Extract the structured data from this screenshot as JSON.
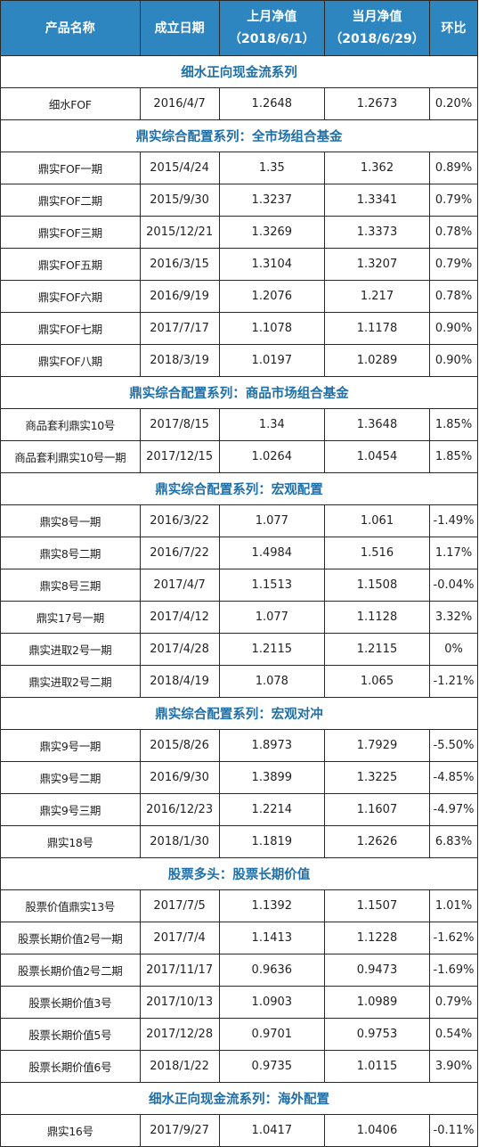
{
  "header": {
    "name": "产品名称",
    "date": "成立日期",
    "prev_nav": "上月净值",
    "prev_date": "（2018/6/1）",
    "curr_nav": "当月净值",
    "curr_date": "（2018/6/29）",
    "change": "环比"
  },
  "sections": [
    {
      "title": "细水正向现金流系列",
      "rows": [
        {
          "name": "细水FOF",
          "date": "2016/4/7",
          "prev": "1.2648",
          "curr": "1.2673",
          "change": "0.20%"
        }
      ]
    },
    {
      "title": "鼎实综合配置系列：全市场组合基金",
      "rows": [
        {
          "name": "鼎实FOF一期",
          "date": "2015/4/24",
          "prev": "1.35",
          "curr": "1.362",
          "change": "0.89%"
        },
        {
          "name": "鼎实FOF二期",
          "date": "2015/9/30",
          "prev": "1.3237",
          "curr": "1.3341",
          "change": "0.79%"
        },
        {
          "name": "鼎实FOF三期",
          "date": "2015/12/21",
          "prev": "1.3269",
          "curr": "1.3373",
          "change": "0.78%"
        },
        {
          "name": "鼎实FOF五期",
          "date": "2016/3/15",
          "prev": "1.3104",
          "curr": "1.3207",
          "change": "0.79%"
        },
        {
          "name": "鼎实FOF六期",
          "date": "2016/9/19",
          "prev": "1.2076",
          "curr": "1.217",
          "change": "0.78%"
        },
        {
          "name": "鼎实FOF七期",
          "date": "2017/7/17",
          "prev": "1.1078",
          "curr": "1.1178",
          "change": "0.90%"
        },
        {
          "name": "鼎实FOF八期",
          "date": "2018/3/19",
          "prev": "1.0197",
          "curr": "1.0289",
          "change": "0.90%"
        }
      ]
    },
    {
      "title": "鼎实综合配置系列：商品市场组合基金",
      "rows": [
        {
          "name": "商品套利鼎实10号",
          "date": "2017/8/15",
          "prev": "1.34",
          "curr": "1.3648",
          "change": "1.85%"
        },
        {
          "name": "商品套利鼎实10号一期",
          "date": "2017/12/15",
          "prev": "1.0264",
          "curr": "1.0454",
          "change": "1.85%"
        }
      ]
    },
    {
      "title": "鼎实综合配置系列：宏观配置",
      "rows": [
        {
          "name": "鼎实8号一期",
          "date": "2016/3/22",
          "prev": "1.077",
          "curr": "1.061",
          "change": "-1.49%"
        },
        {
          "name": "鼎实8号二期",
          "date": "2016/7/22",
          "prev": "1.4984",
          "curr": "1.516",
          "change": "1.17%"
        },
        {
          "name": "鼎实8号三期",
          "date": "2017/4/7",
          "prev": "1.1513",
          "curr": "1.1508",
          "change": "-0.04%"
        },
        {
          "name": "鼎实17号一期",
          "date": "2017/4/12",
          "prev": "1.077",
          "curr": "1.1128",
          "change": "3.32%"
        },
        {
          "name": "鼎实进取2号一期",
          "date": "2017/4/28",
          "prev": "1.2115",
          "curr": "1.2115",
          "change": "0%"
        },
        {
          "name": "鼎实进取2号二期",
          "date": "2018/4/19",
          "prev": "1.078",
          "curr": "1.065",
          "change": "-1.21%"
        }
      ]
    },
    {
      "title": "鼎实综合配置系列：宏观对冲",
      "rows": [
        {
          "name": "鼎实9号一期",
          "date": "2015/8/26",
          "prev": "1.8973",
          "curr": "1.7929",
          "change": "-5.50%"
        },
        {
          "name": "鼎实9号二期",
          "date": "2016/9/30",
          "prev": "1.3899",
          "curr": "1.3225",
          "change": "-4.85%"
        },
        {
          "name": "鼎实9号三期",
          "date": "2016/12/23",
          "prev": "1.2214",
          "curr": "1.1607",
          "change": "-4.97%"
        },
        {
          "name": "鼎实18号",
          "date": "2018/1/30",
          "prev": "1.1819",
          "curr": "1.2626",
          "change": "6.83%"
        }
      ]
    },
    {
      "title": "股票多头：股票长期价值",
      "rows": [
        {
          "name": "股票价值鼎实13号",
          "date": "2017/7/5",
          "prev": "1.1392",
          "curr": "1.1507",
          "change": "1.01%"
        },
        {
          "name": "股票长期价值2号一期",
          "date": "2017/7/4",
          "prev": "1.1413",
          "curr": "1.1228",
          "change": "-1.62%"
        },
        {
          "name": "股票长期价值2号二期",
          "date": "2017/11/17",
          "prev": "0.9636",
          "curr": "0.9473",
          "change": "-1.69%"
        },
        {
          "name": "股票长期价值3号",
          "date": "2017/10/13",
          "prev": "1.0903",
          "curr": "1.0989",
          "change": "0.79%"
        },
        {
          "name": "股票长期价值5号",
          "date": "2017/12/28",
          "prev": "0.9701",
          "curr": "0.9753",
          "change": "0.54%"
        },
        {
          "name": "股票长期价值6号",
          "date": "2018/1/22",
          "prev": "0.9735",
          "curr": "1.0115",
          "change": "3.90%"
        }
      ]
    },
    {
      "title": "细水正向现金流系列：海外配置",
      "rows": [
        {
          "name": "鼎实16号",
          "date": "2017/9/27",
          "prev": "1.0417",
          "curr": "1.0406",
          "change": "-0.11%"
        }
      ]
    }
  ]
}
